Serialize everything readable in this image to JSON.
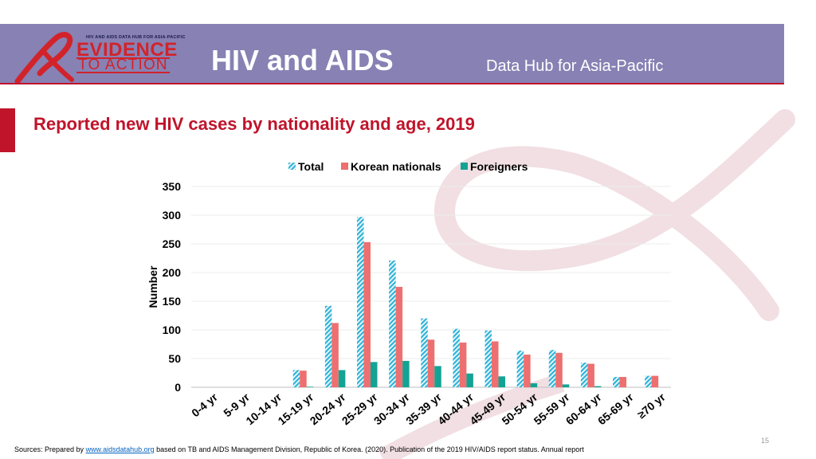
{
  "header": {
    "logo_tagline": "HIV AND AIDS DATA HUB FOR ASIA-PACIFIC",
    "logo_main": "EVIDENCE",
    "logo_sub": "TO ACTION",
    "title": "HIV and AIDS",
    "subtitle": "Data Hub for Asia-Pacific"
  },
  "colors": {
    "banner": "#8781b4",
    "accent": "#c0142b",
    "total": "#37b5d9",
    "korean": "#ee6f6f",
    "foreigners": "#13a394"
  },
  "chart_data": {
    "type": "bar",
    "title": "Reported new HIV cases by nationality and age, 2019",
    "xlabel": "",
    "ylabel": "Number",
    "ylim": [
      0,
      350
    ],
    "yticks": [
      0,
      50,
      100,
      150,
      200,
      250,
      300,
      350
    ],
    "legend_position": "top-center",
    "grid": true,
    "categories": [
      "0-4 yr",
      "5-9 yr",
      "10-14 yr",
      "15-19 yr",
      "20-24 yr",
      "25-29 yr",
      "30-34 yr",
      "35-39 yr",
      "40-44 yr",
      "45-49 yr",
      "50-54 yr",
      "55-59 yr",
      "60-64 yr",
      "65-69 yr",
      "≥70 yr"
    ],
    "series": [
      {
        "name": "Total",
        "values": [
          0,
          0,
          0,
          30,
          142,
          297,
          221,
          120,
          102,
          99,
          64,
          65,
          43,
          18,
          20
        ]
      },
      {
        "name": "Korean nationals",
        "values": [
          0,
          0,
          0,
          29,
          112,
          253,
          175,
          83,
          78,
          80,
          57,
          60,
          41,
          18,
          20
        ]
      },
      {
        "name": "Foreigners",
        "values": [
          0,
          0,
          0,
          1,
          30,
          44,
          46,
          37,
          24,
          19,
          7,
          5,
          2,
          0,
          0
        ]
      }
    ]
  },
  "footer": {
    "prefix": "Sources: Prepared by",
    "link": "www.aidsdatahub.org",
    "suffix": "based on TB and AIDS Management Division, Republic of Korea. (2020). Publication of the 2019 HIV/AIDS report status. Annual report"
  },
  "page_number": "15"
}
